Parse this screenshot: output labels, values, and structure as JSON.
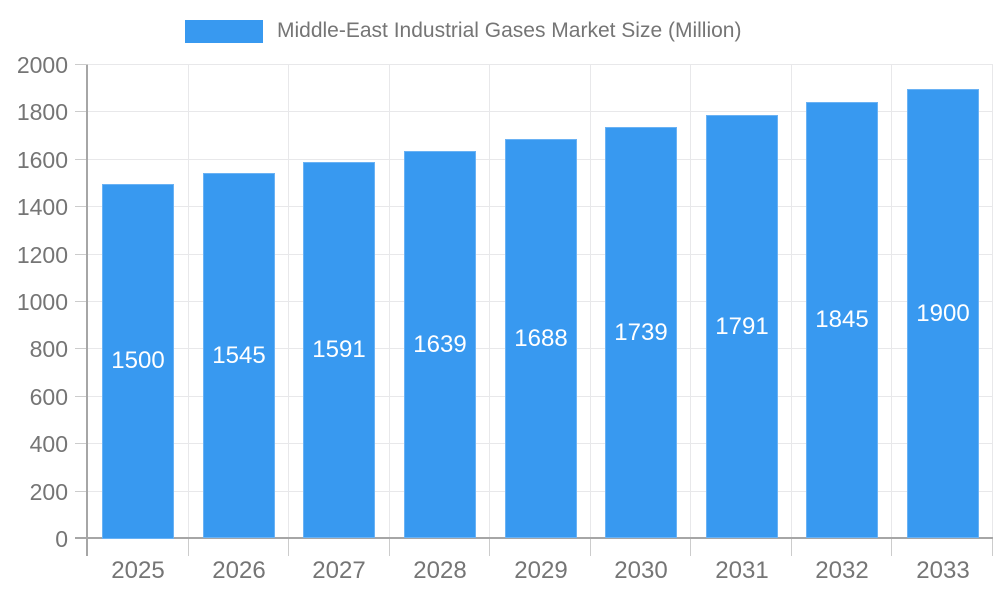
{
  "chart_data": {
    "type": "bar",
    "title": "Middle-East Industrial Gases Market Size (Million)",
    "legend_position": "top",
    "categories": [
      "2025",
      "2026",
      "2027",
      "2028",
      "2029",
      "2030",
      "2031",
      "2032",
      "2033"
    ],
    "series": [
      {
        "name": "Middle-East Industrial Gases Market Size (Million)",
        "values": [
          1500,
          1545,
          1591,
          1639,
          1688,
          1739,
          1791,
          1845,
          1900
        ]
      }
    ],
    "xlabel": "",
    "ylabel": "",
    "ylim": [
      0,
      2000
    ],
    "ytick_step": 200,
    "yticks": [
      0,
      200,
      400,
      600,
      800,
      1000,
      1200,
      1400,
      1600,
      1800,
      2000
    ],
    "grid": true,
    "bar_value_labels": true,
    "colors": {
      "bar": "#3899F0",
      "grid": "#e8e8ea",
      "axis": "#a6a6a6",
      "tick": "#cccccc",
      "axis_text": "#757575",
      "value_text": "#ffffff",
      "background": "#ffffff"
    }
  }
}
